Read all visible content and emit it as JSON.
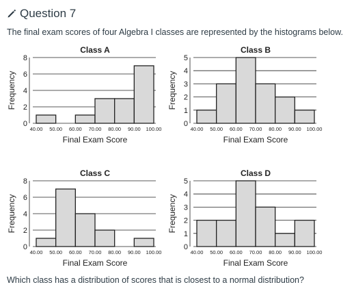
{
  "question": {
    "title": "Question 7",
    "prompt": "The final exam scores of four Algebra I classes are represented by the histograms below.",
    "footer": "Which class has a distribution of scores that is closest to a normal distribution?"
  },
  "icons": {
    "edit": "pencil-icon"
  },
  "colors": {
    "bar_fill": "#d9d9d9",
    "bar_stroke": "#222222",
    "grid": "#222222"
  },
  "chart_data": [
    {
      "type": "bar",
      "title": "Class A",
      "xlabel": "Final Exam Score",
      "ylabel": "Frequency",
      "x_ticks": [
        "40.00",
        "50.00",
        "60.00",
        "70.00",
        "80.00",
        "90.00",
        "100.00"
      ],
      "bin_edges": [
        40,
        50,
        60,
        70,
        80,
        90,
        100
      ],
      "values": [
        1,
        0,
        1,
        3,
        3,
        7
      ],
      "ylim": [
        0,
        8
      ],
      "y_ticks": [
        0,
        2,
        4,
        6,
        8
      ],
      "grid": true
    },
    {
      "type": "bar",
      "title": "Class B",
      "xlabel": "Final Exam Score",
      "ylabel": "Frequency",
      "x_ticks": [
        "40.00",
        "50.00",
        "60.00",
        "70.00",
        "80.00",
        "90.00",
        "100.00"
      ],
      "bin_edges": [
        40,
        50,
        60,
        70,
        80,
        90,
        100
      ],
      "values": [
        1,
        3,
        5,
        3,
        2,
        1
      ],
      "ylim": [
        0,
        5
      ],
      "y_ticks": [
        0,
        1,
        2,
        3,
        4,
        5
      ],
      "grid": true
    },
    {
      "type": "bar",
      "title": "Class C",
      "xlabel": "Final Exam Score",
      "ylabel": "Frequency",
      "x_ticks": [
        "40.00",
        "50.00",
        "60.00",
        "70.00",
        "80.00",
        "90.00",
        "100.00"
      ],
      "bin_edges": [
        40,
        50,
        60,
        70,
        80,
        90,
        100
      ],
      "values": [
        1,
        7,
        4,
        2,
        0,
        1
      ],
      "ylim": [
        0,
        8
      ],
      "y_ticks": [
        0,
        2,
        4,
        6,
        8
      ],
      "grid": true
    },
    {
      "type": "bar",
      "title": "Class D",
      "xlabel": "Final Exam Score",
      "ylabel": "Frequency",
      "x_ticks": [
        "40.00",
        "50.00",
        "60.00",
        "70.00",
        "80.00",
        "90.00",
        "100.00"
      ],
      "bin_edges": [
        40,
        50,
        60,
        70,
        80,
        90,
        100
      ],
      "values": [
        2,
        2,
        5,
        3,
        1,
        2
      ],
      "ylim": [
        0,
        5
      ],
      "y_ticks": [
        0,
        1,
        2,
        3,
        4,
        5
      ],
      "grid": true
    }
  ]
}
